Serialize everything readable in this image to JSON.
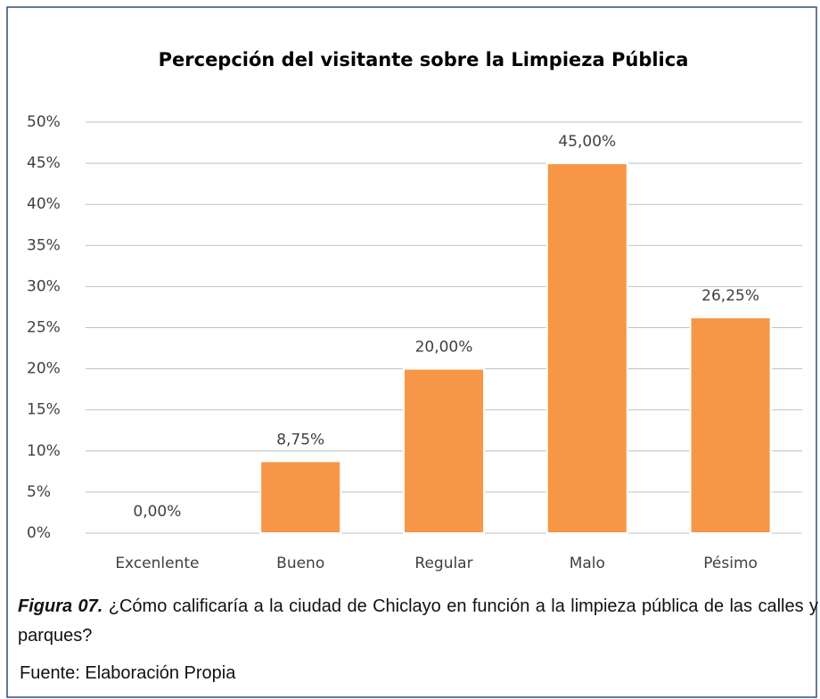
{
  "chart_data": {
    "type": "bar",
    "title": "Percepción del visitante sobre la Limpieza Pública",
    "categories": [
      "Excenlente",
      "Bueno",
      "Regular",
      "Malo",
      "Pésimo"
    ],
    "values": [
      0,
      8.75,
      20,
      45,
      26.25
    ],
    "value_labels": [
      "0,00%",
      "8,75%",
      "20,00%",
      "45,00%",
      "26,25%"
    ],
    "color": "#f79646",
    "ylim": [
      0,
      50
    ],
    "yticks": [
      {
        "value": 0,
        "label": "0%"
      },
      {
        "value": 5,
        "label": "5%"
      },
      {
        "value": 10,
        "label": "10%"
      },
      {
        "value": 15,
        "label": "15%"
      },
      {
        "value": 20,
        "label": "20%"
      },
      {
        "value": 25,
        "label": "25%"
      },
      {
        "value": 30,
        "label": "30%"
      },
      {
        "value": 35,
        "label": "35%"
      },
      {
        "value": 40,
        "label": "40%"
      },
      {
        "value": 45,
        "label": "45%"
      },
      {
        "value": 50,
        "label": "50%"
      }
    ],
    "grid": true
  },
  "caption": {
    "label": "Figura 07.",
    "text": "¿Cómo calificaría a la ciudad de Chiclayo en función a la limpieza pública de las calles y parques?"
  },
  "source": "Fuente: Elaboración Propia"
}
